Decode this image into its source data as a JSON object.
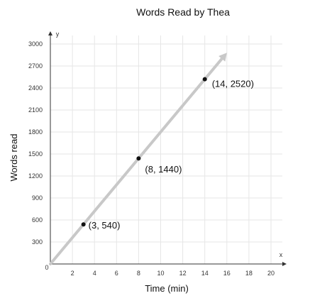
{
  "chart_data": {
    "type": "line",
    "title": "Words Read by Thea",
    "xlabel": "Time (min)",
    "ylabel": "Words read",
    "x_axis_letter": "x",
    "y_axis_letter": "y",
    "origin_label": "0",
    "xlim": [
      0,
      20
    ],
    "ylim": [
      0,
      3000
    ],
    "x_ticks": [
      2,
      4,
      6,
      8,
      10,
      12,
      14,
      16,
      18,
      20
    ],
    "y_ticks": [
      300,
      600,
      900,
      1200,
      1500,
      1800,
      2100,
      2400,
      2700,
      3000
    ],
    "grid": true,
    "line": {
      "slope": 180,
      "intercept": 0,
      "x_start": 0,
      "x_end": 16,
      "color": "#c8c8c8",
      "arrow_end": true
    },
    "points": [
      {
        "x": 3,
        "y": 540,
        "label": "(3, 540)"
      },
      {
        "x": 8,
        "y": 1440,
        "label": "(8, 1440)"
      },
      {
        "x": 14,
        "y": 2520,
        "label": "(14, 2520)"
      }
    ],
    "colors": {
      "grid": "#e6e6e6",
      "axis": "#333333",
      "point": "#111111"
    }
  }
}
